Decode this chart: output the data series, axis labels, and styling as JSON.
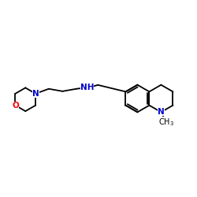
{
  "bg_color": "#ffffff",
  "bond_color": "#000000",
  "N_color": "#0000cd",
  "O_color": "#ff0000",
  "figsize": [
    2.5,
    2.5
  ],
  "dpi": 100,
  "lw": 1.3,
  "xlim": [
    0,
    10
  ],
  "ylim": [
    2,
    8
  ]
}
